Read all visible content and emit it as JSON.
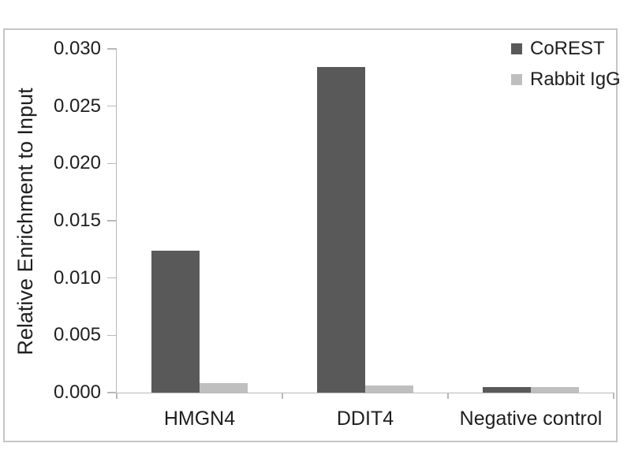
{
  "chart_data": {
    "type": "bar",
    "title": "",
    "xlabel": "",
    "ylabel": "Relative Enrichment to Input",
    "categories": [
      "HMGN4",
      "DDIT4",
      "Negative control"
    ],
    "series": [
      {
        "name": "CoREST",
        "color": "#595959",
        "values": [
          0.0124,
          0.0284,
          0.0005
        ]
      },
      {
        "name": "Rabbit IgG",
        "color": "#bfbfbf",
        "values": [
          0.0008,
          0.0006,
          0.0005
        ]
      }
    ],
    "ylim": [
      0,
      0.03
    ],
    "ytick_step": 0.005,
    "ytick_decimals": 3,
    "grid": false,
    "legend_position": "top-right"
  },
  "colors": {
    "axis": "#b9b9b9",
    "text": "#1f1f1f",
    "frame_border": "#c6c6c6",
    "background": "#ffffff"
  }
}
